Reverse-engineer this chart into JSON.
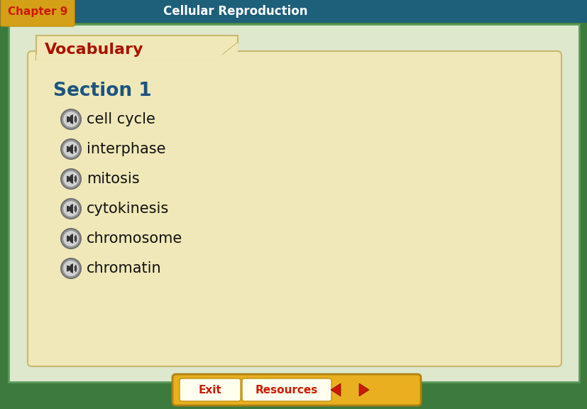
{
  "bg_outer": "#3d7a3d",
  "bg_inner": "#dde8cc",
  "header_bg": "#1e5f7a",
  "header_chapter_bg": "#d4a017",
  "header_chapter_text": "Chapter 9",
  "header_title_text": "Cellular Reproduction",
  "header_chapter_color": "#cc1a00",
  "header_title_color": "#ffffff",
  "folder_bg": "#f0e8b8",
  "vocab_label": "Vocabulary",
  "vocab_color": "#aa1100",
  "section_label": "Section 1",
  "section_color": "#1a5580",
  "vocab_items": [
    "cell cycle",
    "interphase",
    "mitosis",
    "cytokinesis",
    "chromosome",
    "chromatin"
  ],
  "vocab_text_color": "#111111",
  "button_bar_bg": "#e8b020",
  "button_exit_text": "Exit",
  "button_resources_text": "Resources",
  "button_text_color": "#cc1a00",
  "arrow_color": "#cc1a00",
  "icon_outer": "#a0a0a0",
  "icon_inner": "#d0d0d0",
  "icon_symbol": "#333333"
}
